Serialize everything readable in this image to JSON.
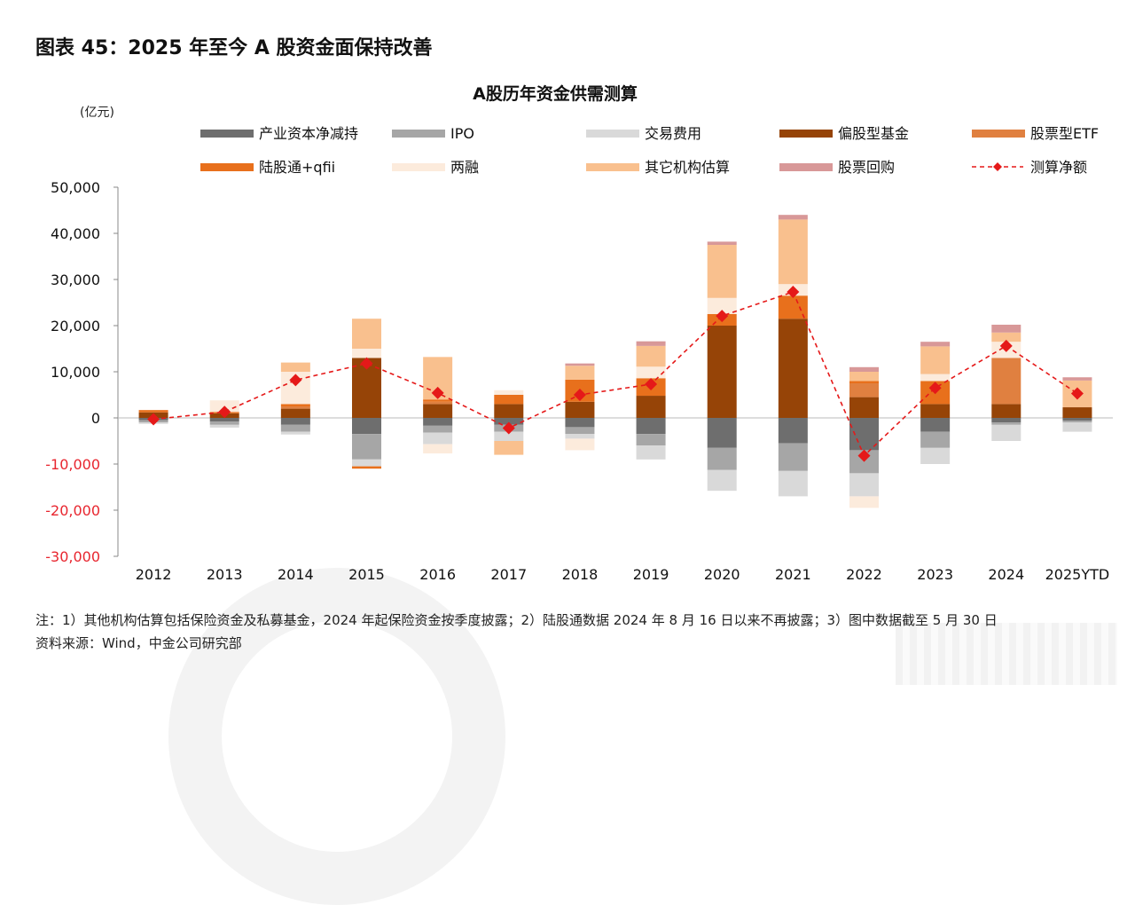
{
  "figure_title": "图表 45：2025 年至今 A 股资金面保持改善",
  "unit_label": "(亿元)",
  "note": "注：1）其他机构估算包括保险资金及私募基金，2024 年起保险资金按季度披露；2）陆股通数据 2024 年 8 月 16 日以来不再披露；3）图中数据截至 5 月 30 日",
  "source": "资料来源：Wind，中金公司研究部",
  "chart_data": {
    "type": "bar",
    "title": "A股历年资金供需测算",
    "xlabel": "",
    "ylabel": "",
    "ylim": [
      -30000,
      50000
    ],
    "yticks": [
      -30000,
      -20000,
      -10000,
      0,
      10000,
      20000,
      30000,
      40000,
      50000
    ],
    "ytick_labels": [
      "-30,000",
      "-20,000",
      "-10,000",
      "0",
      "10,000",
      "20,000",
      "30,000",
      "40,000",
      "50,000"
    ],
    "negative_tick_color": "#e8262f",
    "stacked": true,
    "legend_position": "top",
    "categories": [
      "2012",
      "2013",
      "2014",
      "2015",
      "2016",
      "2017",
      "2018",
      "2019",
      "2020",
      "2021",
      "2022",
      "2023",
      "2024",
      "2025YTD"
    ],
    "series": [
      {
        "name": "产业资本净减持",
        "color": "#6e6e6e",
        "kind": "bar",
        "values": [
          -500,
          -800,
          -1500,
          -3500,
          -1700,
          -1500,
          -2000,
          -3500,
          -6500,
          -5500,
          -7000,
          -3000,
          -1000,
          -600
        ]
      },
      {
        "name": "IPO",
        "color": "#a6a6a6",
        "kind": "bar",
        "values": [
          -500,
          -700,
          -1500,
          -5500,
          -1500,
          -1500,
          -1500,
          -2500,
          -4800,
          -6000,
          -5000,
          -3500,
          -500,
          -400
        ]
      },
      {
        "name": "交易费用",
        "color": "#d9d9d9",
        "kind": "bar",
        "values": [
          -300,
          -600,
          -600,
          -1500,
          -2500,
          -2000,
          -1000,
          -3000,
          -4500,
          -5500,
          -5000,
          -3500,
          -3500,
          -2000
        ]
      },
      {
        "name": "偏股型基金",
        "color": "#964407",
        "kind": "bar",
        "values": [
          1200,
          1000,
          2000,
          13000,
          3000,
          3000,
          3500,
          4800,
          20000,
          21500,
          4500,
          3000,
          3000,
          2300
        ]
      },
      {
        "name": "股票型ETF",
        "color": "#e08040",
        "kind": "bar",
        "values": [
          0,
          0,
          500,
          0,
          500,
          0,
          0,
          0,
          0,
          0,
          3000,
          0,
          10000,
          0
        ]
      },
      {
        "name": "陆股通+qfii",
        "color": "#e8701c",
        "kind": "bar",
        "values": [
          500,
          300,
          500,
          -500,
          500,
          2000,
          4800,
          3800,
          2500,
          5000,
          500,
          5000,
          0,
          0
        ]
      },
      {
        "name": "两融",
        "color": "#fcebdc",
        "kind": "bar",
        "values": [
          0,
          2500,
          7000,
          2000,
          -2000,
          1000,
          -2500,
          2500,
          3500,
          2500,
          -2500,
          1500,
          3500,
          0
        ]
      },
      {
        "name": "其它机构估算",
        "color": "#f9c08e",
        "kind": "bar",
        "values": [
          0,
          0,
          2000,
          6500,
          9200,
          -3000,
          3000,
          4500,
          11500,
          14000,
          2000,
          6000,
          2000,
          5800
        ]
      },
      {
        "name": "股票回购",
        "color": "#d89898",
        "kind": "bar",
        "values": [
          0,
          0,
          0,
          0,
          0,
          0,
          500,
          1000,
          700,
          1000,
          1000,
          1000,
          1700,
          700
        ]
      },
      {
        "name": "测算净额",
        "color": "#e51919",
        "kind": "line",
        "values": [
          -300,
          1300,
          8200,
          11800,
          5400,
          -2200,
          5000,
          7300,
          22100,
          27300,
          -8200,
          6500,
          15600,
          5300
        ]
      }
    ]
  }
}
